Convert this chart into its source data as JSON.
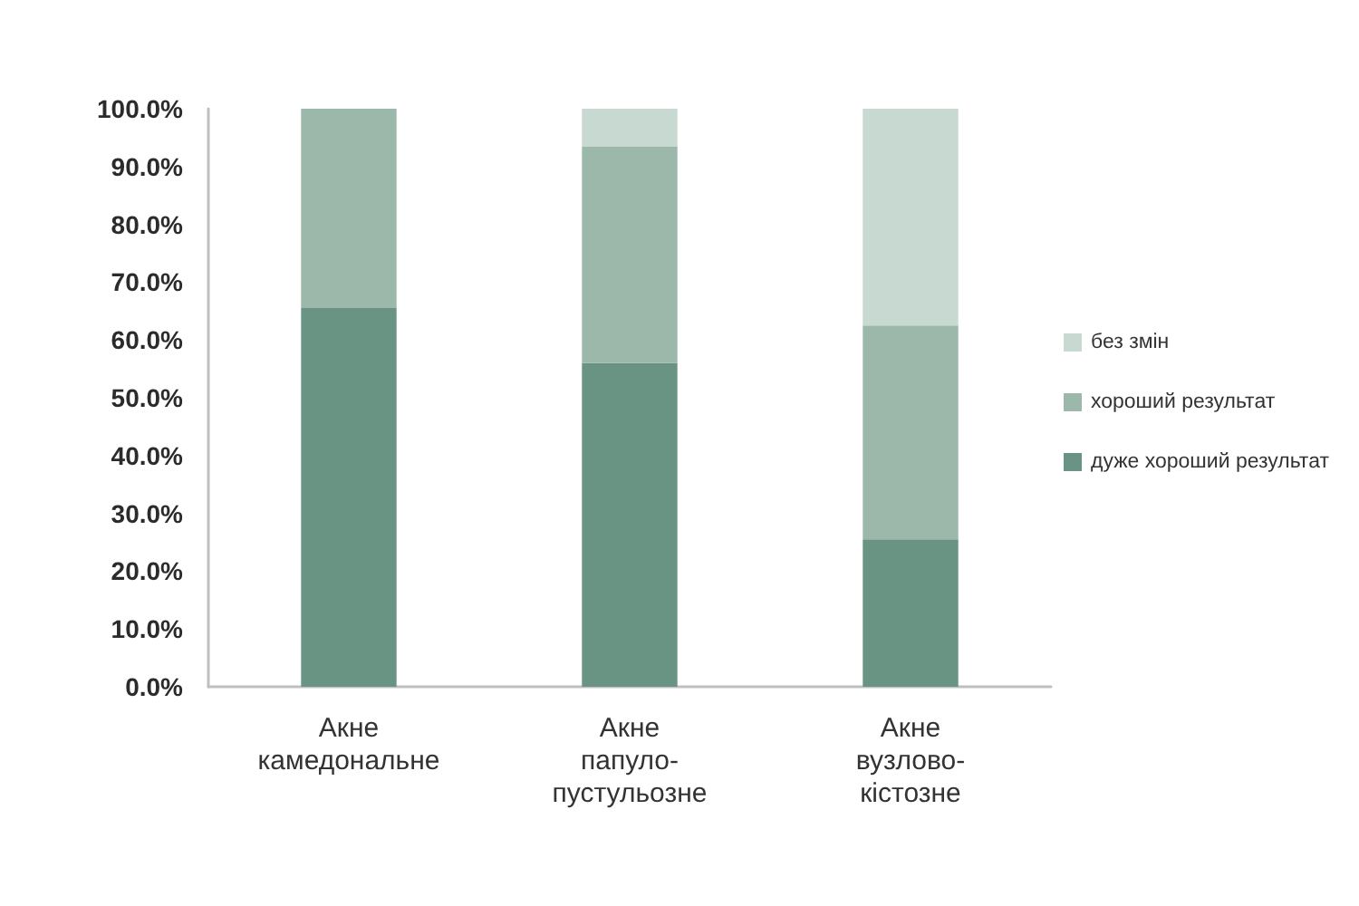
{
  "chart_data": {
    "type": "bar",
    "stacked": true,
    "categories": [
      "Акне камедональне",
      "Акне папуло-пустульозне",
      "Акне вузлово-кістозне"
    ],
    "series": [
      {
        "name": "дуже хороший результат",
        "color": "#699483",
        "values": [
          65.5,
          56,
          25.5
        ]
      },
      {
        "name": "хороший результат",
        "color": "#9cb8ab",
        "values": [
          34.5,
          37.5,
          37
        ]
      },
      {
        "name": "без змін",
        "color": "#c7d9d0",
        "values": [
          0,
          6.5,
          37.5
        ]
      }
    ],
    "ylim": [
      0,
      100
    ],
    "yticks": [
      {
        "value": 0,
        "label": "0.0%"
      },
      {
        "value": 10,
        "label": "10.0%"
      },
      {
        "value": 20,
        "label": "20.0%"
      },
      {
        "value": 30,
        "label": "30.0%"
      },
      {
        "value": 40,
        "label": "40.0%"
      },
      {
        "value": 50,
        "label": "50.0%"
      },
      {
        "value": 60,
        "label": "60.0%"
      },
      {
        "value": 70,
        "label": "70.0%"
      },
      {
        "value": 80,
        "label": "80.0%"
      },
      {
        "value": 90,
        "label": "90.0%"
      },
      {
        "value": 100,
        "label": "100.0%"
      }
    ],
    "grid": false,
    "legend": "right"
  }
}
